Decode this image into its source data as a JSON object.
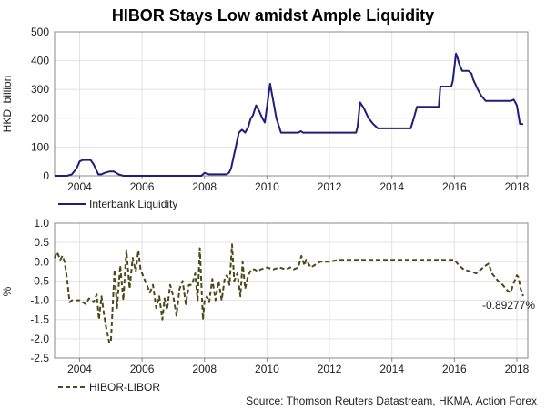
{
  "title": "HIBOR Stays Low amidst Ample Liquidity",
  "source": "Source: Thomson Reuters Datastream, HKMA, Action Forex",
  "colors": {
    "liquidity": "#1f1f7a",
    "spread": "#4a4a1a",
    "grid": "#e3e3e3"
  },
  "chart_data": [
    {
      "type": "line",
      "ylabel": "HKD, billion",
      "ylim": [
        0,
        500
      ],
      "yticks": [
        "0",
        "100",
        "200",
        "300",
        "400",
        "500"
      ],
      "xlim": [
        2003.2,
        2018.35
      ],
      "xticks": [
        "2004",
        "2006",
        "2008",
        "2010",
        "2012",
        "2014",
        "2016",
        "2018"
      ],
      "grid": true,
      "legend_position": "bottom-left",
      "series": [
        {
          "name": "Interbank Liquidity",
          "color": "#1f1f7a",
          "x": [
            2003.2,
            2003.6,
            2003.75,
            2003.9,
            2004.0,
            2004.1,
            2004.2,
            2004.35,
            2004.45,
            2004.6,
            2004.7,
            2004.8,
            2004.95,
            2005.1,
            2005.25,
            2005.4,
            2005.5,
            2005.7,
            2006.0,
            2006.5,
            2007.0,
            2007.5,
            2007.9,
            2008.0,
            2008.15,
            2008.3,
            2008.5,
            2008.7,
            2008.78,
            2008.85,
            2008.92,
            2009.0,
            2009.1,
            2009.2,
            2009.3,
            2009.4,
            2009.48,
            2009.55,
            2009.65,
            2009.75,
            2009.85,
            2009.93,
            2010.0,
            2010.1,
            2010.2,
            2010.3,
            2010.45,
            2010.6,
            2011.0,
            2011.08,
            2011.15,
            2011.5,
            2012.0,
            2012.5,
            2012.85,
            2012.9,
            2012.98,
            2013.1,
            2013.25,
            2013.4,
            2013.55,
            2013.7,
            2014.0,
            2014.5,
            2014.6,
            2014.7,
            2014.8,
            2014.9,
            2015.5,
            2015.55,
            2015.6,
            2015.9,
            2015.95,
            2016.05,
            2016.1,
            2016.15,
            2016.25,
            2016.45,
            2016.55,
            2016.6,
            2016.75,
            2016.85,
            2017.0,
            2017.2,
            2017.4,
            2017.55,
            2017.65,
            2017.8,
            2017.9,
            2018.0,
            2018.1,
            2018.15,
            2018.2
          ],
          "values": [
            0,
            0,
            5,
            25,
            50,
            55,
            55,
            55,
            40,
            5,
            5,
            10,
            15,
            15,
            5,
            0,
            0,
            0,
            0,
            0,
            0,
            0,
            0,
            10,
            5,
            5,
            5,
            5,
            10,
            25,
            60,
            100,
            150,
            160,
            150,
            170,
            200,
            210,
            245,
            225,
            200,
            185,
            240,
            320,
            260,
            200,
            150,
            150,
            150,
            155,
            150,
            150,
            150,
            150,
            150,
            170,
            255,
            235,
            200,
            180,
            165,
            165,
            165,
            165,
            165,
            200,
            240,
            240,
            240,
            310,
            310,
            310,
            330,
            425,
            410,
            390,
            365,
            365,
            355,
            335,
            300,
            280,
            260,
            260,
            260,
            260,
            260,
            260,
            265,
            245,
            180,
            180,
            180
          ]
        }
      ]
    },
    {
      "type": "line",
      "ylabel": "%",
      "ylim": [
        -2.5,
        1.0
      ],
      "yticks": [
        "-2.5",
        "-2.0",
        "-1.5",
        "-1.0",
        "-0.5",
        "0.0",
        "0.5",
        "1.0"
      ],
      "xlim": [
        2003.2,
        2018.35
      ],
      "xticks": [
        "2004",
        "2006",
        "2008",
        "2010",
        "2012",
        "2014",
        "2016",
        "2018"
      ],
      "grid": true,
      "legend_position": "bottom-left",
      "annotations": [
        "-0.89277%"
      ],
      "series": [
        {
          "name": "HIBOR-LIBOR",
          "color": "#4a4a1a",
          "dashed": true,
          "x": [
            2003.2,
            2003.28,
            2003.38,
            2003.45,
            2003.52,
            2003.6,
            2003.68,
            2003.75,
            2003.85,
            2004.0,
            2004.2,
            2004.3,
            2004.45,
            2004.55,
            2004.62,
            2004.7,
            2004.78,
            2004.85,
            2004.95,
            2005.0,
            2005.05,
            2005.12,
            2005.2,
            2005.3,
            2005.4,
            2005.5,
            2005.6,
            2005.7,
            2005.8,
            2005.88,
            2005.95,
            2006.05,
            2006.15,
            2006.25,
            2006.35,
            2006.45,
            2006.55,
            2006.65,
            2006.72,
            2006.8,
            2006.9,
            2007.0,
            2007.1,
            2007.2,
            2007.3,
            2007.4,
            2007.5,
            2007.6,
            2007.7,
            2007.78,
            2007.85,
            2007.95,
            2008.0,
            2008.08,
            2008.15,
            2008.25,
            2008.35,
            2008.45,
            2008.55,
            2008.65,
            2008.72,
            2008.8,
            2008.88,
            2008.95,
            2009.05,
            2009.15,
            2009.22,
            2009.3,
            2009.4,
            2009.5,
            2009.6,
            2009.7,
            2009.8,
            2010.0,
            2010.2,
            2010.4,
            2010.6,
            2010.75,
            2010.85,
            2011.0,
            2011.1,
            2011.2,
            2011.25,
            2011.4,
            2011.5,
            2011.7,
            2012.0,
            2012.3,
            2012.6,
            2013.0,
            2013.5,
            2014.0,
            2014.5,
            2015.0,
            2015.5,
            2016.0,
            2016.15,
            2016.3,
            2016.5,
            2016.7,
            2016.85,
            2017.0,
            2017.1,
            2017.2,
            2017.4,
            2017.55,
            2017.7,
            2017.8,
            2017.9,
            2018.0,
            2018.05,
            2018.12,
            2018.2
          ],
          "values": [
            0.1,
            0.25,
            0.05,
            0.15,
            0.0,
            -0.45,
            -1.05,
            -1.0,
            -1.0,
            -1.0,
            -1.1,
            -0.95,
            -1.05,
            -0.85,
            -1.5,
            -0.9,
            -1.35,
            -1.7,
            -2.1,
            -2.1,
            -1.3,
            -0.2,
            -1.2,
            -0.1,
            -1.0,
            0.3,
            -0.7,
            0.1,
            -0.25,
            0.3,
            -0.2,
            -0.4,
            -0.6,
            -0.8,
            -0.6,
            -1.2,
            -0.9,
            -1.5,
            -0.95,
            -1.25,
            -0.6,
            -0.9,
            -1.4,
            -0.7,
            -0.5,
            -1.1,
            -0.6,
            -0.6,
            -0.3,
            -1.0,
            0.35,
            -1.5,
            -1.0,
            -0.9,
            -1.05,
            -0.45,
            -1.0,
            -0.5,
            -1.0,
            -0.4,
            -0.35,
            -0.6,
            0.45,
            -0.5,
            -0.3,
            -0.9,
            0.0,
            -0.7,
            -0.35,
            -0.2,
            -0.2,
            -0.25,
            -0.2,
            -0.15,
            -0.2,
            -0.15,
            -0.2,
            -0.15,
            -0.2,
            -0.15,
            0.15,
            -0.1,
            0.05,
            -0.15,
            -0.1,
            0.0,
            0.0,
            0.05,
            0.05,
            0.05,
            0.05,
            0.05,
            0.05,
            0.05,
            0.05,
            0.05,
            -0.1,
            -0.2,
            -0.25,
            -0.3,
            -0.2,
            -0.1,
            -0.05,
            -0.3,
            -0.5,
            -0.6,
            -0.75,
            -0.8,
            -0.55,
            -0.35,
            -0.4,
            -0.7,
            -0.89277
          ]
        }
      ]
    }
  ]
}
